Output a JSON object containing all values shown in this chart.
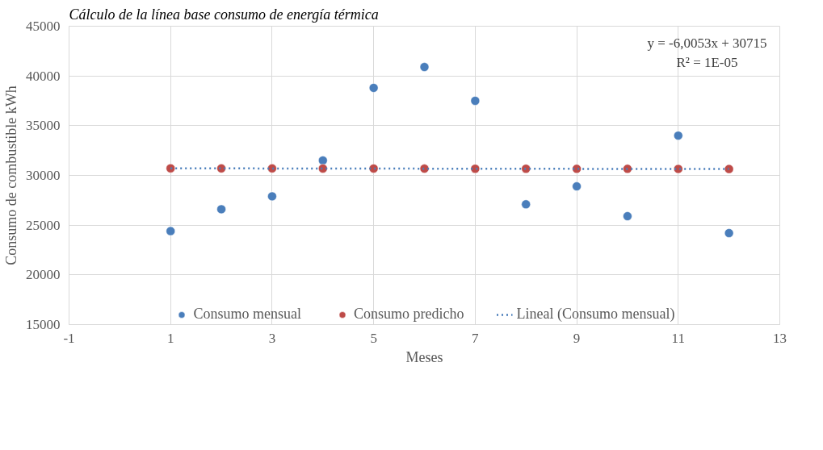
{
  "chart_data": {
    "type": "scatter",
    "title": "Cálculo de la línea base consumo de energía térmica",
    "xlabel": "Meses",
    "ylabel": "Consumo de combustible kWh",
    "xlim": [
      -1,
      13
    ],
    "xticks": [
      -1,
      1,
      3,
      5,
      7,
      9,
      11,
      13
    ],
    "ylim": [
      15000,
      45000
    ],
    "yticks": [
      15000,
      20000,
      25000,
      30000,
      35000,
      40000,
      45000
    ],
    "grid": true,
    "legend": "bottom",
    "marker": "circle",
    "annotations": [
      "y = -6,0053x + 30715",
      "R² = 1E-05"
    ],
    "series": [
      {
        "name": "Consumo mensual",
        "color": "#4a7ebb",
        "x": [
          1,
          2,
          3,
          4,
          5,
          6,
          7,
          8,
          9,
          10,
          11,
          12
        ],
        "values": [
          24400,
          26600,
          27900,
          31500,
          38800,
          40900,
          37500,
          27100,
          28900,
          25900,
          34000,
          24200
        ]
      },
      {
        "name": "Consumo predicho",
        "color": "#be4b48",
        "x": [
          1,
          2,
          3,
          4,
          5,
          6,
          7,
          8,
          9,
          10,
          11,
          12
        ],
        "values": [
          30710,
          30700,
          30700,
          30690,
          30690,
          30680,
          30670,
          30670,
          30660,
          30660,
          30650,
          30640
        ]
      },
      {
        "name": "Lineal (Consumo mensual)",
        "type": "line",
        "line_style": "dotted",
        "marker": "none",
        "color": "#4a7ebb",
        "x": [
          1,
          12
        ],
        "values": [
          30710,
          30640
        ]
      }
    ]
  }
}
